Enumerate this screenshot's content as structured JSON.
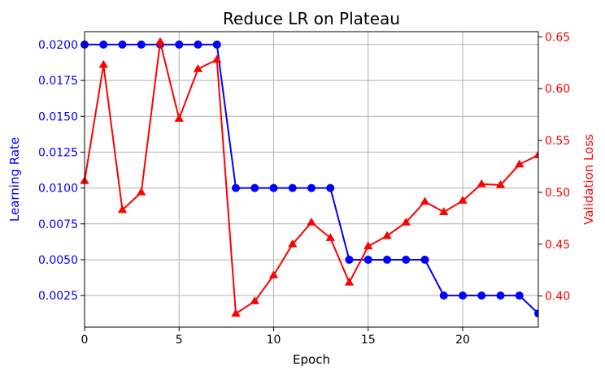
{
  "chart_data": {
    "type": "line",
    "title": "Reduce LR on Plateau",
    "xlabel": "Epoch",
    "ylabel_left": "Learning Rate",
    "ylabel_right": "Validation Loss",
    "xlim": [
      0,
      24
    ],
    "ylim_left": [
      0.0003,
      0.0209
    ],
    "ylim_right": [
      0.37,
      0.655
    ],
    "x_ticks": [
      0,
      5,
      10,
      15,
      20
    ],
    "y_ticks_left": [
      "0.0025",
      "0.0050",
      "0.0075",
      "0.0100",
      "0.0125",
      "0.0150",
      "0.0175",
      "0.0200"
    ],
    "y_ticks_right": [
      "0.40",
      "0.45",
      "0.50",
      "0.55",
      "0.60",
      "0.65"
    ],
    "grid": true,
    "x": [
      0,
      1,
      2,
      3,
      4,
      5,
      6,
      7,
      8,
      9,
      10,
      11,
      12,
      13,
      14,
      15,
      16,
      17,
      18,
      19,
      20,
      21,
      22,
      23,
      24
    ],
    "series": [
      {
        "name": "",
        "axis": "left",
        "color": "#0000ff",
        "marker": "circle",
        "values": [
          0.02,
          0.02,
          0.02,
          0.02,
          0.02,
          0.02,
          0.02,
          0.02,
          0.01,
          0.01,
          0.01,
          0.01,
          0.01,
          0.01,
          0.005,
          0.005,
          0.005,
          0.005,
          0.005,
          0.0025,
          0.0025,
          0.0025,
          0.0025,
          0.0025,
          0.00125
        ]
      },
      {
        "name": "",
        "axis": "right",
        "color": "#ff0000",
        "marker": "triangle",
        "values": [
          0.511,
          0.623,
          0.483,
          0.5,
          0.645,
          0.571,
          0.619,
          0.628,
          0.383,
          0.395,
          0.42,
          0.45,
          0.471,
          0.456,
          0.413,
          0.448,
          0.458,
          0.471,
          0.491,
          0.481,
          0.492,
          0.508,
          0.507,
          0.527,
          0.536
        ]
      }
    ]
  }
}
